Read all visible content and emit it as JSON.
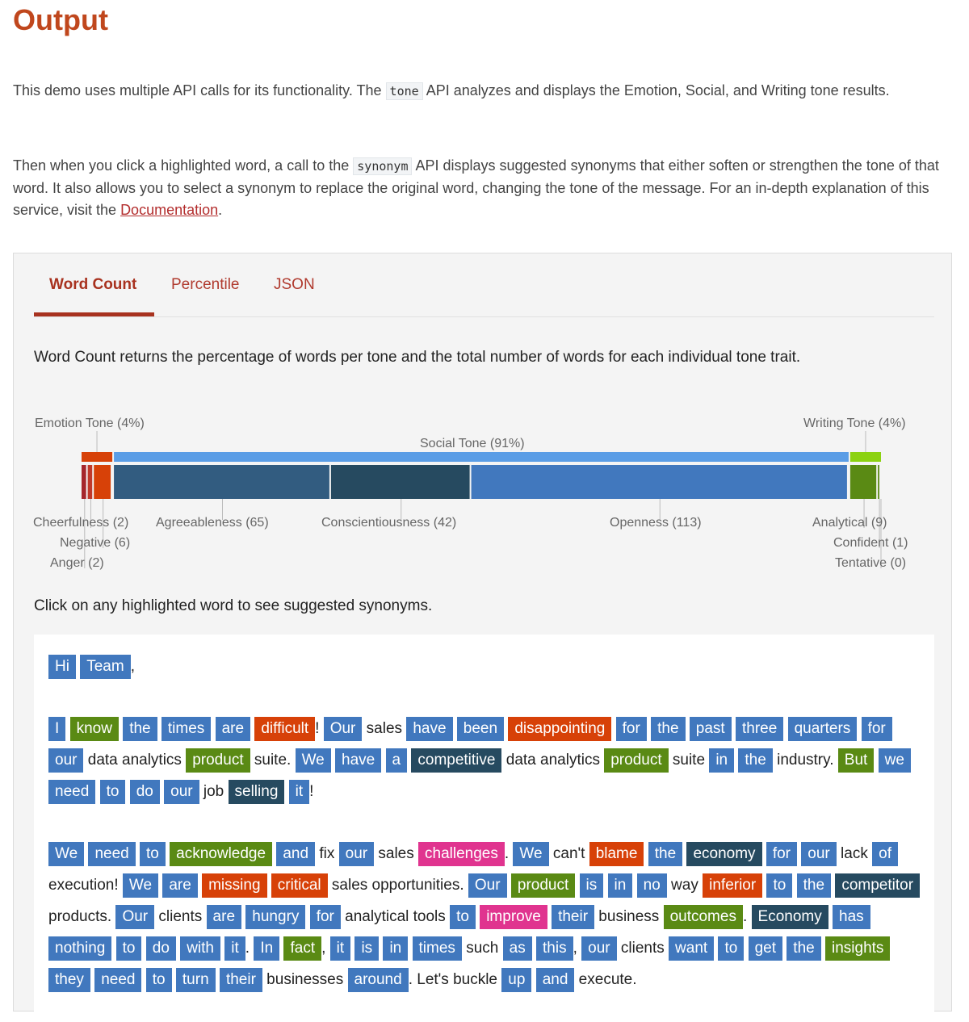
{
  "page": {
    "title": "Output",
    "intro1": {
      "before": "This demo uses multiple API calls for its functionality. The",
      "code": "tone",
      "after": "API analyzes and displays the Emotion, Social, and Writing tone results."
    },
    "intro2": {
      "before": "Then when you click a highlighted word, a call to the",
      "code": "synonym",
      "after": "API displays suggested synonyms that either soften or strengthen the tone of that word. It also allows you to select a synonym to replace the original word, changing the tone of the message. For an in-depth explanation of this service, visit the",
      "link": "Documentation",
      "end": "."
    }
  },
  "tabs": [
    {
      "label": "Word Count",
      "active": true
    },
    {
      "label": "Percentile",
      "active": false
    },
    {
      "label": "JSON",
      "active": false
    }
  ],
  "panel": {
    "description": "Word Count returns the percentage of words per tone and the total number of words for each individual tone trait.",
    "instruction": "Click on any highlighted word to see suggested synonyms."
  },
  "colors": {
    "emotion": "#d74108",
    "social": "#4178be",
    "writing": "#5a8a14",
    "anger": "#a5262c",
    "agreeableness": "#325c80",
    "conscientiousness": "#264a60",
    "openness": "#4178be",
    "social_light": "#5a9de6",
    "writing_light": "#8cd211"
  },
  "chart_data": {
    "type": "bar",
    "groups": [
      {
        "label": "Emotion Tone (4%)",
        "percent": 4
      },
      {
        "label": "Social Tone (91%)",
        "percent": 91
      },
      {
        "label": "Writing Tone (4%)",
        "percent": 4
      }
    ],
    "traits": [
      {
        "name": "Anger",
        "group": "emotion",
        "label": "Anger (2)",
        "count": 2
      },
      {
        "name": "Cheerfulness",
        "group": "emotion",
        "label": "Cheerfulness (2)",
        "count": 2
      },
      {
        "name": "Negative",
        "group": "emotion",
        "label": "Negative (6)",
        "count": 6
      },
      {
        "name": "Agreeableness",
        "group": "social",
        "label": "Agreeableness (65)",
        "count": 65
      },
      {
        "name": "Conscientiousness",
        "group": "social",
        "label": "Conscientiousness (42)",
        "count": 42
      },
      {
        "name": "Openness",
        "group": "social",
        "label": "Openness (113)",
        "count": 113
      },
      {
        "name": "Analytical",
        "group": "writing",
        "label": "Analytical (9)",
        "count": 9
      },
      {
        "name": "Confident",
        "group": "writing",
        "label": "Confident (1)",
        "count": 1
      },
      {
        "name": "Tentative",
        "group": "writing",
        "label": "Tentative (0)",
        "count": 0
      }
    ]
  },
  "paragraphs": [
    [
      {
        "t": "Hi",
        "c": "social"
      },
      {
        "t": " "
      },
      {
        "t": "Team",
        "c": "social"
      },
      {
        "t": ","
      }
    ],
    [
      {
        "t": "I",
        "c": "social"
      },
      {
        "t": " "
      },
      {
        "t": "know",
        "c": "writing"
      },
      {
        "t": " "
      },
      {
        "t": "the",
        "c": "social"
      },
      {
        "t": " "
      },
      {
        "t": "times",
        "c": "social"
      },
      {
        "t": " "
      },
      {
        "t": "are",
        "c": "social"
      },
      {
        "t": " "
      },
      {
        "t": "difficult",
        "c": "emotion"
      },
      {
        "t": "! "
      },
      {
        "t": "Our",
        "c": "social"
      },
      {
        "t": " sales "
      },
      {
        "t": "have",
        "c": "social"
      },
      {
        "t": " "
      },
      {
        "t": "been",
        "c": "social"
      },
      {
        "t": " "
      },
      {
        "t": "disappointing",
        "c": "emotion"
      },
      {
        "t": " "
      },
      {
        "t": "for",
        "c": "social"
      },
      {
        "t": " "
      },
      {
        "t": "the",
        "c": "social"
      },
      {
        "t": " "
      },
      {
        "t": "past",
        "c": "social"
      },
      {
        "t": " "
      },
      {
        "t": "three",
        "c": "social"
      },
      {
        "t": " "
      },
      {
        "t": "quarters",
        "c": "social"
      },
      {
        "t": " "
      },
      {
        "t": "for",
        "c": "social"
      },
      {
        "t": " "
      },
      {
        "t": "our",
        "c": "social"
      },
      {
        "t": " data analytics "
      },
      {
        "t": "product",
        "c": "writing"
      },
      {
        "t": " suite. "
      },
      {
        "t": "We",
        "c": "social"
      },
      {
        "t": " "
      },
      {
        "t": "have",
        "c": "social"
      },
      {
        "t": " "
      },
      {
        "t": "a",
        "c": "social"
      },
      {
        "t": " "
      },
      {
        "t": "competitive",
        "c": "dark"
      },
      {
        "t": " data analytics "
      },
      {
        "t": "product",
        "c": "writing"
      },
      {
        "t": " suite "
      },
      {
        "t": "in",
        "c": "social"
      },
      {
        "t": " "
      },
      {
        "t": "the",
        "c": "social"
      },
      {
        "t": " industry. "
      },
      {
        "t": "But",
        "c": "writing"
      },
      {
        "t": " "
      },
      {
        "t": "we",
        "c": "social"
      },
      {
        "t": " "
      },
      {
        "t": "need",
        "c": "social"
      },
      {
        "t": " "
      },
      {
        "t": "to",
        "c": "social"
      },
      {
        "t": " "
      },
      {
        "t": "do",
        "c": "social"
      },
      {
        "t": " "
      },
      {
        "t": "our",
        "c": "social"
      },
      {
        "t": " job "
      },
      {
        "t": "selling",
        "c": "dark"
      },
      {
        "t": " "
      },
      {
        "t": "it",
        "c": "social"
      },
      {
        "t": "!"
      }
    ],
    [
      {
        "t": "We",
        "c": "social"
      },
      {
        "t": " "
      },
      {
        "t": "need",
        "c": "social"
      },
      {
        "t": " "
      },
      {
        "t": "to",
        "c": "social"
      },
      {
        "t": " "
      },
      {
        "t": "acknowledge",
        "c": "writing"
      },
      {
        "t": " "
      },
      {
        "t": "and",
        "c": "social"
      },
      {
        "t": " fix "
      },
      {
        "t": "our",
        "c": "social"
      },
      {
        "t": " sales "
      },
      {
        "t": "challenges",
        "c": "pink"
      },
      {
        "t": ". "
      },
      {
        "t": "We",
        "c": "social"
      },
      {
        "t": " can't "
      },
      {
        "t": "blame",
        "c": "emotion"
      },
      {
        "t": " "
      },
      {
        "t": "the",
        "c": "social"
      },
      {
        "t": " "
      },
      {
        "t": "economy",
        "c": "dark"
      },
      {
        "t": " "
      },
      {
        "t": "for",
        "c": "social"
      },
      {
        "t": " "
      },
      {
        "t": "our",
        "c": "social"
      },
      {
        "t": " lack "
      },
      {
        "t": "of",
        "c": "social"
      },
      {
        "t": " execution! "
      },
      {
        "t": "We",
        "c": "social"
      },
      {
        "t": " "
      },
      {
        "t": "are",
        "c": "social"
      },
      {
        "t": " "
      },
      {
        "t": "missing",
        "c": "emotion"
      },
      {
        "t": " "
      },
      {
        "t": "critical",
        "c": "emotion"
      },
      {
        "t": " sales opportunities. "
      },
      {
        "t": "Our",
        "c": "social"
      },
      {
        "t": " "
      },
      {
        "t": "product",
        "c": "writing"
      },
      {
        "t": " "
      },
      {
        "t": "is",
        "c": "social"
      },
      {
        "t": " "
      },
      {
        "t": "in",
        "c": "social"
      },
      {
        "t": " "
      },
      {
        "t": "no",
        "c": "social"
      },
      {
        "t": " way "
      },
      {
        "t": "inferior",
        "c": "emotion"
      },
      {
        "t": " "
      },
      {
        "t": "to",
        "c": "social"
      },
      {
        "t": " "
      },
      {
        "t": "the",
        "c": "social"
      },
      {
        "t": " "
      },
      {
        "t": "competitor",
        "c": "dark"
      },
      {
        "t": " products. "
      },
      {
        "t": "Our",
        "c": "social"
      },
      {
        "t": " clients "
      },
      {
        "t": "are",
        "c": "social"
      },
      {
        "t": " "
      },
      {
        "t": "hungry",
        "c": "social"
      },
      {
        "t": " "
      },
      {
        "t": "for",
        "c": "social"
      },
      {
        "t": " analytical tools "
      },
      {
        "t": "to",
        "c": "social"
      },
      {
        "t": " "
      },
      {
        "t": "improve",
        "c": "pink"
      },
      {
        "t": " "
      },
      {
        "t": "their",
        "c": "social"
      },
      {
        "t": " business "
      },
      {
        "t": "outcomes",
        "c": "writing"
      },
      {
        "t": ". "
      },
      {
        "t": "Economy",
        "c": "dark"
      },
      {
        "t": " "
      },
      {
        "t": "has",
        "c": "social"
      },
      {
        "t": " "
      },
      {
        "t": "nothing",
        "c": "social"
      },
      {
        "t": " "
      },
      {
        "t": "to",
        "c": "social"
      },
      {
        "t": " "
      },
      {
        "t": "do",
        "c": "social"
      },
      {
        "t": " "
      },
      {
        "t": "with",
        "c": "social"
      },
      {
        "t": " "
      },
      {
        "t": "it",
        "c": "social"
      },
      {
        "t": ". "
      },
      {
        "t": "In",
        "c": "social"
      },
      {
        "t": " "
      },
      {
        "t": "fact",
        "c": "writing"
      },
      {
        "t": ", "
      },
      {
        "t": "it",
        "c": "social"
      },
      {
        "t": " "
      },
      {
        "t": "is",
        "c": "social"
      },
      {
        "t": " "
      },
      {
        "t": "in",
        "c": "social"
      },
      {
        "t": " "
      },
      {
        "t": "times",
        "c": "social"
      },
      {
        "t": " such "
      },
      {
        "t": "as",
        "c": "social"
      },
      {
        "t": " "
      },
      {
        "t": "this",
        "c": "social"
      },
      {
        "t": ", "
      },
      {
        "t": "our",
        "c": "social"
      },
      {
        "t": " clients "
      },
      {
        "t": "want",
        "c": "social"
      },
      {
        "t": " "
      },
      {
        "t": "to",
        "c": "social"
      },
      {
        "t": " "
      },
      {
        "t": "get",
        "c": "social"
      },
      {
        "t": " "
      },
      {
        "t": "the",
        "c": "social"
      },
      {
        "t": " "
      },
      {
        "t": "insights",
        "c": "writing"
      },
      {
        "t": " "
      },
      {
        "t": "they",
        "c": "social"
      },
      {
        "t": " "
      },
      {
        "t": "need",
        "c": "social"
      },
      {
        "t": " "
      },
      {
        "t": "to",
        "c": "social"
      },
      {
        "t": " "
      },
      {
        "t": "turn",
        "c": "social"
      },
      {
        "t": " "
      },
      {
        "t": "their",
        "c": "social"
      },
      {
        "t": " businesses "
      },
      {
        "t": "around",
        "c": "social"
      },
      {
        "t": ". Let's buckle "
      },
      {
        "t": "up",
        "c": "social"
      },
      {
        "t": " "
      },
      {
        "t": "and",
        "c": "social"
      },
      {
        "t": " execute."
      }
    ]
  ]
}
